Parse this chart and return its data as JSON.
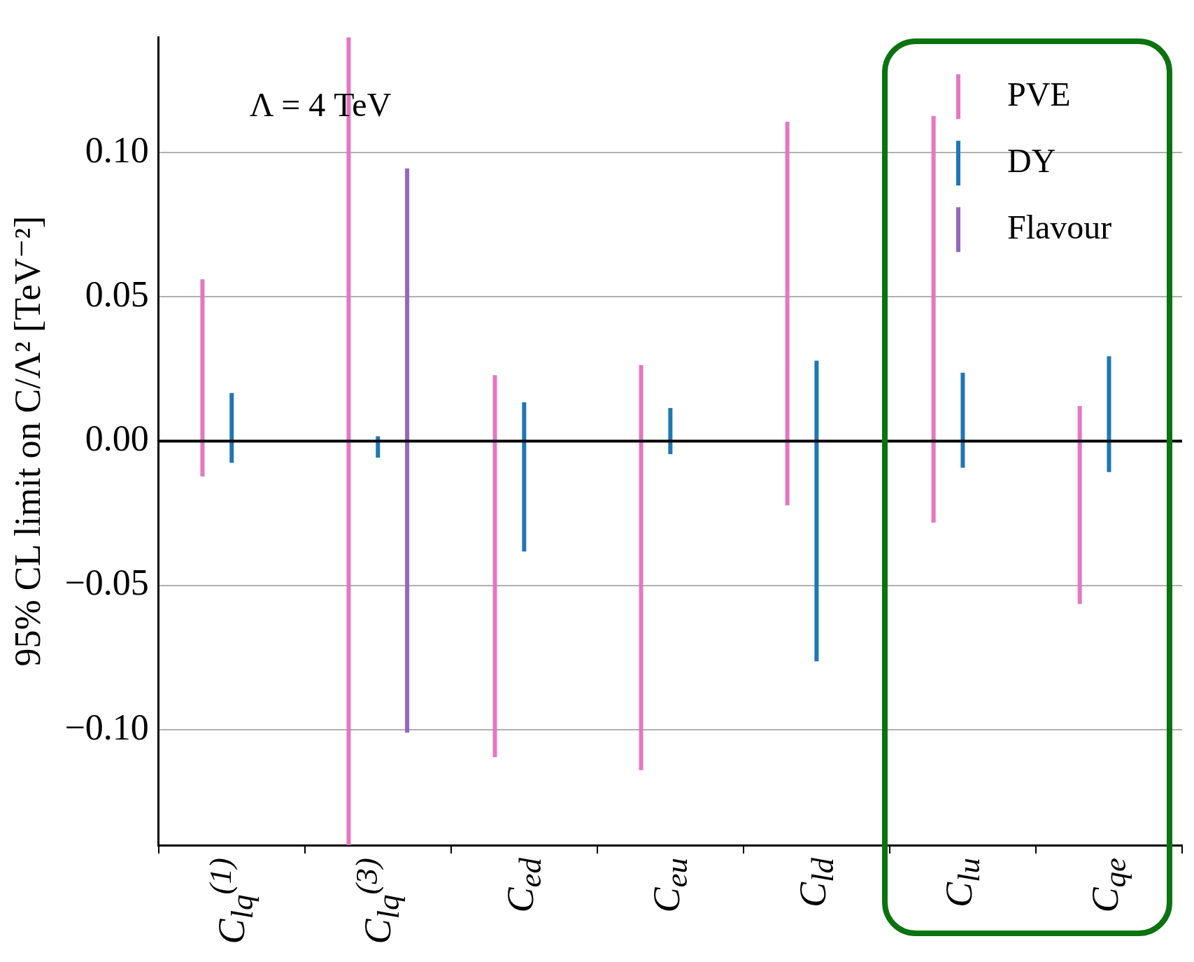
{
  "chart_data": {
    "type": "bar",
    "ylabel": "95% CL limit on C/Λ² [TeV⁻²]",
    "annotations": [
      "Λ = 4 TeV"
    ],
    "categories": [
      "C$_{lq}$$^{(1)}$",
      "C$_{lq}$$^{(3)}$",
      "C$_{ed}$",
      "C$_{eu}$",
      "C$_{ld}$",
      "C$_{lu}$",
      "C$_{qe}$"
    ],
    "series": [
      {
        "name": "PVE",
        "color": "#e377c2",
        "values": [
          0.0683,
          0.28,
          0.1324,
          0.1404,
          0.1329,
          0.1409,
          0.0686
        ],
        "base": [
          -0.0122,
          -0.14,
          -0.1095,
          -0.114,
          -0.0222,
          -0.0282,
          -0.0564
        ]
      },
      {
        "name": "DY",
        "color": "#1f77b4",
        "values": [
          0.0242,
          0.0074,
          0.0517,
          0.016,
          0.1042,
          0.0329,
          0.0401
        ],
        "base": [
          -0.0075,
          -0.0057,
          -0.0382,
          -0.0045,
          -0.0763,
          -0.0092,
          -0.0107
        ]
      },
      {
        "name": "Flavour",
        "color": "#9467bd",
        "values": [
          null,
          0.1955,
          null,
          null,
          null,
          null,
          null
        ],
        "base": [
          null,
          -0.101,
          null,
          null,
          null,
          null,
          null
        ]
      }
    ],
    "ylim": [
      -0.14,
      0.14
    ],
    "yticks": [
      {
        "value": -0.1,
        "label": "−0.10"
      },
      {
        "value": -0.05,
        "label": "−0.05"
      },
      {
        "value": 0,
        "label": "0.00"
      },
      {
        "value": 0.05,
        "label": "0.05"
      },
      {
        "value": 0.1,
        "label": "0.10"
      }
    ],
    "ref_lines": [
      {
        "axis": "y",
        "value": 0,
        "color": "#000000"
      }
    ],
    "grid": "y",
    "legend": "top right"
  }
}
